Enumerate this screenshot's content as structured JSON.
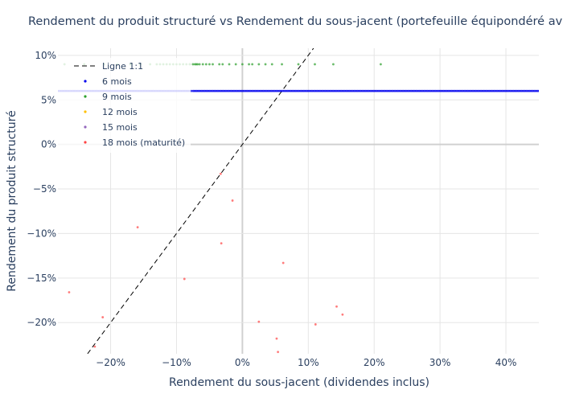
{
  "chart_data": {
    "type": "scatter",
    "title": "Rendement du produit structuré vs Rendement du sous-jacent (portefeuille équipondéré avec dividendes)",
    "xlabel": "Rendement du sous-jacent (dividendes inclus)",
    "ylabel": "Rendement du produit structuré",
    "x_unit": "%",
    "y_unit": "%",
    "xlim": [
      -28,
      45
    ],
    "ylim": [
      -23.5,
      10.8
    ],
    "x_ticks": [
      -20,
      -10,
      0,
      10,
      20,
      30,
      40
    ],
    "y_ticks": [
      -20,
      -15,
      -10,
      -5,
      0,
      5,
      10
    ],
    "x_tick_labels": [
      "−20%",
      "−10%",
      "0%",
      "10%",
      "20%",
      "30%",
      "40%"
    ],
    "y_tick_labels": [
      "−20%",
      "−15%",
      "−10%",
      "−5%",
      "0%",
      "5%",
      "10%"
    ],
    "grid": true,
    "legend_position": "top-left",
    "reference_line": {
      "name": "Ligne 1:1",
      "color": "#000000",
      "style": "dashed"
    },
    "series": [
      {
        "name": "6 mois",
        "color": "#0000ee",
        "y_constant": 6.0,
        "x_range": [
          -28,
          45
        ],
        "count": 420
      },
      {
        "name": "9 mois",
        "color": "#2ca02c",
        "x": [
          -27,
          -24,
          -21,
          -19,
          -17,
          -15.5,
          -14,
          -13,
          -12.5,
          -12,
          -11.5,
          -11,
          -10.5,
          -10,
          -9.5,
          -9,
          -8.5,
          -8,
          -7.5,
          -7.2,
          -7,
          -6.8,
          -6.5,
          -6,
          -5.5,
          -5,
          -4.5,
          -3.5,
          -3,
          -2,
          -1,
          0,
          1,
          1.5,
          2.5,
          3.5,
          4.5,
          6,
          8.5,
          11,
          13.8,
          21
        ],
        "y": [
          9,
          9,
          9,
          9,
          9,
          9,
          9,
          9,
          9,
          9,
          9,
          9,
          9,
          9,
          9,
          9,
          9,
          9,
          9,
          9,
          9,
          9,
          9,
          9,
          9,
          9,
          9,
          9,
          9,
          9,
          9,
          9,
          9,
          9,
          9,
          9,
          9,
          9,
          9,
          9,
          9,
          9
        ]
      },
      {
        "name": "12 mois",
        "color": "#ffbf00",
        "x": [],
        "y": []
      },
      {
        "name": "15 mois",
        "color": "#9467bd",
        "x": [],
        "y": []
      },
      {
        "name": "18 mois (maturité)",
        "color": "#ff4444",
        "x": [
          -26.3,
          -22.4,
          -21.2,
          -15.9,
          -8.8,
          -3.3,
          -3.2,
          -1.5,
          2.5,
          5.2,
          5.4,
          6.2,
          11.1,
          14.3,
          15.2
        ],
        "y": [
          -16.6,
          -22.7,
          -19.4,
          -9.3,
          -15.1,
          -3.3,
          -11.1,
          -6.3,
          -19.9,
          -21.8,
          -23.3,
          -13.3,
          -20.2,
          -18.2,
          -19.1
        ]
      }
    ]
  }
}
